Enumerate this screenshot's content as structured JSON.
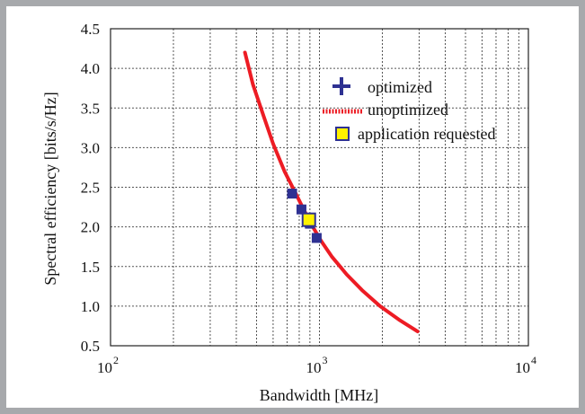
{
  "chart_data": {
    "type": "line",
    "xlabel": "Bandwidth [MHz]",
    "ylabel": "Spectral efficiency [bits/s/Hz]",
    "x_scale": "log",
    "xlim": [
      100,
      10000
    ],
    "ylim": [
      0.5,
      4.5
    ],
    "x_tick_labels": [
      {
        "base": "10",
        "exp": "2",
        "value": 100
      },
      {
        "base": "10",
        "exp": "3",
        "value": 1000
      },
      {
        "base": "10",
        "exp": "4",
        "value": 10000
      }
    ],
    "y_ticks": [
      0.5,
      1.0,
      1.5,
      2.0,
      2.5,
      3.0,
      3.5,
      4.0,
      4.5
    ],
    "y_tick_labels": [
      "0.5",
      "1.0",
      "1.5",
      "2.0",
      "2.5",
      "3.0",
      "3.5",
      "4.0",
      "4.5"
    ],
    "grid": true,
    "legend_position": "top-right",
    "legend": [
      {
        "label": "optimized",
        "marker": "plus",
        "color": "#2e3192"
      },
      {
        "label": "unoptimized",
        "marker": "dotted-line",
        "color": "#ed1c24"
      },
      {
        "label": "application requested",
        "marker": "square",
        "color": "#fff200",
        "edge": "#2e3192"
      }
    ],
    "series": [
      {
        "role": "unoptimized",
        "style": "line",
        "color": "#ed1c24",
        "points": [
          {
            "x": 440,
            "y": 4.2
          },
          {
            "x": 480,
            "y": 3.8
          },
          {
            "x": 540,
            "y": 3.4
          },
          {
            "x": 600,
            "y": 3.05
          },
          {
            "x": 680,
            "y": 2.7
          },
          {
            "x": 760,
            "y": 2.45
          },
          {
            "x": 840,
            "y": 2.22
          },
          {
            "x": 920,
            "y": 2.02
          },
          {
            "x": 1020,
            "y": 1.82
          },
          {
            "x": 1150,
            "y": 1.62
          },
          {
            "x": 1350,
            "y": 1.4
          },
          {
            "x": 1600,
            "y": 1.2
          },
          {
            "x": 1950,
            "y": 1.0
          },
          {
            "x": 2400,
            "y": 0.83
          },
          {
            "x": 2950,
            "y": 0.68
          }
        ]
      },
      {
        "role": "optimized",
        "style": "markers",
        "marker": "plus",
        "color": "#2e3192",
        "points": [
          {
            "x": 740,
            "y": 2.42
          },
          {
            "x": 820,
            "y": 2.22
          },
          {
            "x": 900,
            "y": 2.04
          },
          {
            "x": 970,
            "y": 1.86
          }
        ]
      },
      {
        "role": "application requested",
        "style": "markers",
        "marker": "square",
        "color": "#fff200",
        "points": [
          {
            "x": 890,
            "y": 2.09
          }
        ]
      }
    ]
  }
}
